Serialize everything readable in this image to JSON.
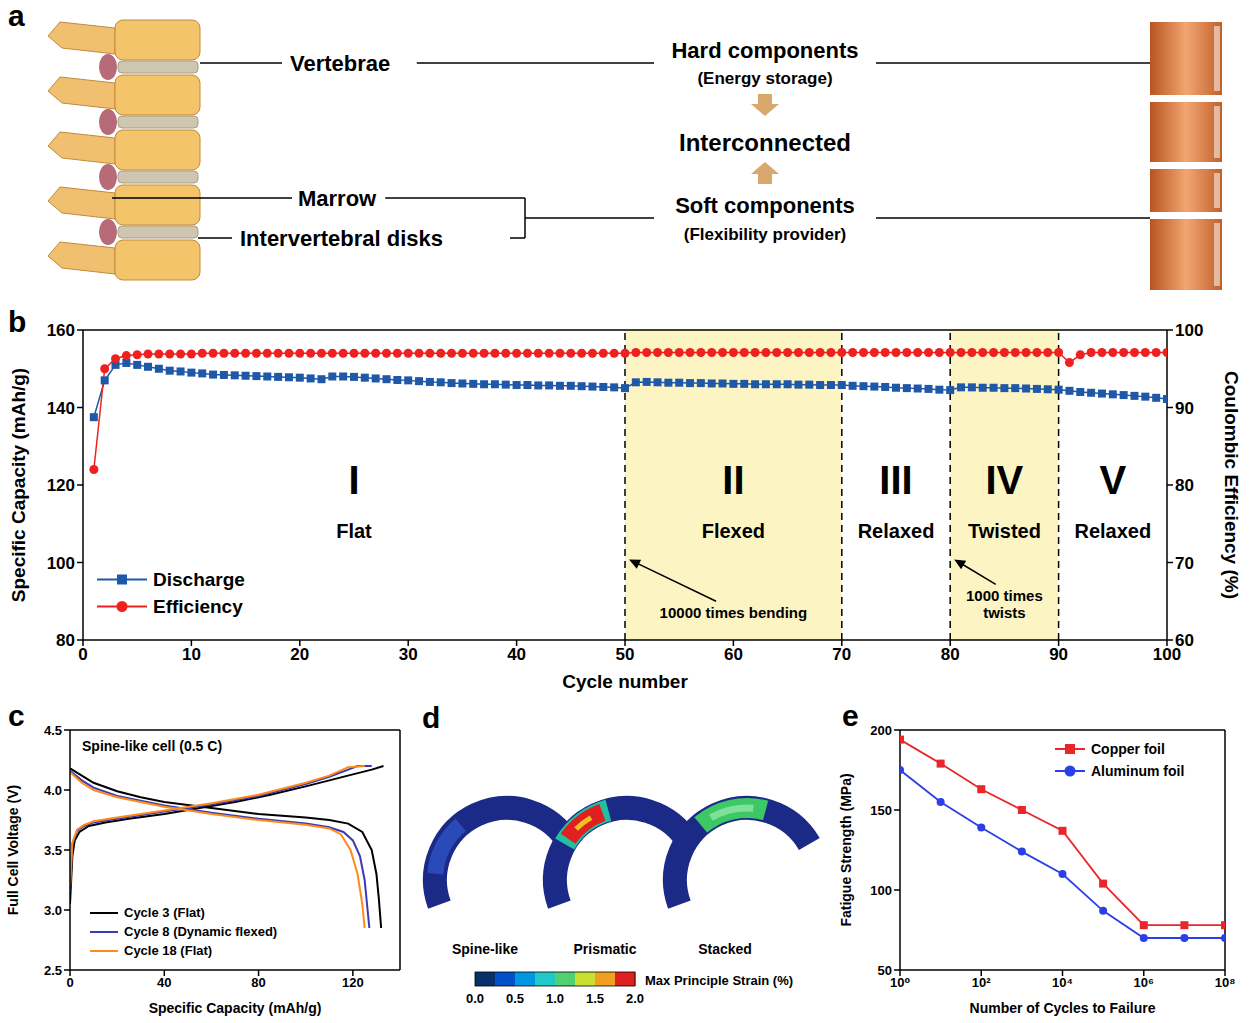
{
  "panel_labels": [
    "a",
    "b",
    "c",
    "d",
    "e"
  ],
  "diagram_a": {
    "left_labels": {
      "vertebrae": "Vertebrae",
      "marrow": "Marrow",
      "disks": "Intervertebral disks"
    },
    "center": {
      "hard": {
        "title": "Hard components",
        "subtitle": "(Energy storage)"
      },
      "link": "Interconnected",
      "soft": {
        "title": "Soft components",
        "subtitle": "(Flexibility provider)"
      }
    }
  },
  "chart_data": [
    {
      "type": "line",
      "xlabel": "Cycle number",
      "ylabel": "Specific Capacity (mAh/g)",
      "y2label": "Coulombic Efficiency (%)",
      "x": [
        1,
        2,
        3,
        4,
        5,
        6,
        7,
        8,
        9,
        10,
        11,
        12,
        13,
        14,
        15,
        16,
        17,
        18,
        19,
        20,
        21,
        22,
        23,
        24,
        25,
        26,
        27,
        28,
        29,
        30,
        31,
        32,
        33,
        34,
        35,
        36,
        37,
        38,
        39,
        40,
        41,
        42,
        43,
        44,
        45,
        46,
        47,
        48,
        49,
        50,
        51,
        52,
        53,
        54,
        55,
        56,
        57,
        58,
        59,
        60,
        61,
        62,
        63,
        64,
        65,
        66,
        67,
        68,
        69,
        70,
        71,
        72,
        73,
        74,
        75,
        76,
        77,
        78,
        79,
        80,
        81,
        82,
        83,
        84,
        85,
        86,
        87,
        88,
        89,
        90,
        91,
        92,
        93,
        94,
        95,
        96,
        97,
        98,
        99,
        100
      ],
      "xlim": [
        0,
        100
      ],
      "xticks": [
        0,
        10,
        20,
        30,
        40,
        50,
        60,
        70,
        80,
        90,
        100
      ],
      "ylim": [
        80,
        160
      ],
      "yticks": [
        80,
        100,
        120,
        140,
        160
      ],
      "y2lim": [
        60,
        100
      ],
      "y2ticks": [
        60,
        70,
        80,
        90,
        100
      ],
      "legend": "lower left",
      "series": [
        {
          "name": "Discharge",
          "color": "#2058a8",
          "marker": "square",
          "values": [
            137.5,
            147,
            151,
            151.5,
            151,
            150.5,
            150,
            149.5,
            149.3,
            149,
            148.8,
            148.5,
            148.4,
            148.3,
            148.2,
            148.1,
            148,
            147.9,
            147.8,
            147.7,
            147.5,
            147.3,
            148,
            148,
            147.9,
            147.7,
            147.5,
            147.3,
            147.1,
            147,
            146.8,
            146.6,
            146.5,
            146.3,
            146.2,
            146.1,
            146,
            146,
            145.9,
            145.8,
            145.8,
            145.7,
            145.7,
            145.6,
            145.6,
            145.5,
            145.4,
            145.3,
            145.2,
            145,
            146.5,
            146.6,
            146.5,
            146.4,
            146.4,
            146.3,
            146.3,
            146.2,
            146.2,
            146.1,
            146.1,
            146,
            146,
            146,
            146,
            145.9,
            145.9,
            145.8,
            145.8,
            145.8,
            145.6,
            145.5,
            145.4,
            145.3,
            145.1,
            145,
            144.9,
            144.8,
            144.6,
            144.5,
            145.2,
            145.2,
            145.1,
            145.1,
            145,
            145,
            144.9,
            144.8,
            144.7,
            144.6,
            144.3,
            144,
            143.8,
            143.6,
            143.4,
            143.2,
            143,
            142.8,
            142.5,
            142.2
          ]
        },
        {
          "name": "Efficiency",
          "color": "#ee2020",
          "marker": "circle",
          "axis": "y2",
          "values": [
            82,
            95,
            96.3,
            96.7,
            96.8,
            96.9,
            96.9,
            96.9,
            96.9,
            96.9,
            97,
            97,
            97,
            97,
            97,
            97,
            97,
            97,
            97,
            97,
            97,
            97,
            97,
            97,
            97,
            97,
            97,
            97,
            97,
            97,
            97,
            97,
            97,
            97,
            97,
            97,
            97,
            97,
            97,
            97,
            97,
            97,
            97,
            97,
            97,
            97,
            97,
            97,
            97,
            97,
            97.1,
            97.1,
            97.1,
            97.1,
            97.1,
            97.1,
            97.1,
            97.1,
            97.1,
            97.1,
            97.1,
            97.1,
            97.1,
            97.1,
            97.1,
            97.1,
            97.1,
            97.1,
            97.1,
            97.1,
            97.1,
            97.1,
            97.1,
            97.1,
            97.1,
            97.1,
            97.1,
            97.1,
            97.1,
            97.1,
            97.1,
            97.1,
            97.1,
            97.1,
            97.1,
            97.1,
            97.1,
            97.1,
            97.1,
            97.1,
            95.8,
            96.8,
            97.1,
            97.1,
            97.1,
            97.1,
            97.1,
            97.1,
            97.1,
            97.1
          ]
        }
      ],
      "regions": [
        {
          "from": 0,
          "to": 50,
          "label": "I",
          "name": "Flat"
        },
        {
          "from": 50,
          "to": 70,
          "label": "II",
          "name": "Flexed",
          "color": "#fbf1a9",
          "note": "10000 times bending"
        },
        {
          "from": 70,
          "to": 80,
          "label": "III",
          "name": "Relaxed"
        },
        {
          "from": 80,
          "to": 90,
          "label": "IV",
          "name": "Twisted",
          "color": "#fbf1a9",
          "note": "1000 times twists"
        },
        {
          "from": 90,
          "to": 100,
          "label": "V",
          "name": "Relaxed"
        }
      ]
    },
    {
      "type": "line",
      "title": "Spine-like cell (0.5 C)",
      "xlabel": "Specific Capacity (mAh/g)",
      "ylabel": "Full Cell Voltage (V)",
      "xlim": [
        0,
        140
      ],
      "xticks": [
        0,
        40,
        80,
        120
      ],
      "ylim": [
        2.5,
        4.5
      ],
      "yticks": [
        2.5,
        {
          "value": 3,
          "label": "3.0"
        },
        3.5,
        {
          "value": 4,
          "label": "4.0"
        },
        4.5
      ],
      "legend": "lower left",
      "series": [
        {
          "name": "Cycle 3 (Flat)",
          "color": "#000000",
          "curves": [
            {
              "x": [
                0,
                1,
                2,
                4,
                8,
                15,
                25,
                40,
                55,
                70,
                85,
                100,
                110,
                120,
                128,
                133
              ],
              "values": [
                3.05,
                3.45,
                3.58,
                3.65,
                3.7,
                3.73,
                3.76,
                3.8,
                3.85,
                3.9,
                3.96,
                4.03,
                4.08,
                4.13,
                4.17,
                4.2
              ]
            },
            {
              "x": [
                0,
                5,
                10,
                20,
                30,
                40,
                60,
                80,
                100,
                110,
                118,
                124,
                128,
                130,
                131,
                132
              ],
              "values": [
                4.18,
                4.12,
                4.06,
                3.99,
                3.94,
                3.9,
                3.85,
                3.8,
                3.77,
                3.75,
                3.72,
                3.65,
                3.5,
                3.3,
                3.1,
                2.85
              ]
            }
          ]
        },
        {
          "name": "Cycle 8 (Dynamic flexed)",
          "color": "#3a3ab8",
          "curves": [
            {
              "x": [
                0,
                1,
                3,
                6,
                10,
                20,
                40,
                60,
                80,
                100,
                110,
                118,
                122,
                128
              ],
              "values": [
                3.15,
                3.55,
                3.66,
                3.7,
                3.73,
                3.76,
                3.82,
                3.88,
                3.95,
                4.05,
                4.11,
                4.17,
                4.2,
                4.2
              ]
            },
            {
              "x": [
                0,
                5,
                10,
                20,
                40,
                60,
                80,
                100,
                110,
                116,
                120,
                123,
                125,
                126,
                127
              ],
              "values": [
                4.16,
                4.08,
                4.02,
                3.95,
                3.87,
                3.81,
                3.76,
                3.72,
                3.69,
                3.65,
                3.58,
                3.45,
                3.25,
                3.05,
                2.85
              ]
            }
          ]
        },
        {
          "name": "Cycle 18 (Flat)",
          "color": "#ff8a1c",
          "curves": [
            {
              "x": [
                0,
                1,
                3,
                6,
                10,
                20,
                40,
                60,
                80,
                100,
                110,
                118,
                125
              ],
              "values": [
                3.2,
                3.56,
                3.67,
                3.71,
                3.74,
                3.77,
                3.83,
                3.89,
                3.96,
                4.06,
                4.12,
                4.19,
                4.2
              ]
            },
            {
              "x": [
                0,
                5,
                10,
                20,
                40,
                60,
                80,
                100,
                110,
                115,
                119,
                122,
                124,
                125
              ],
              "values": [
                4.15,
                4.06,
                4,
                3.94,
                3.86,
                3.8,
                3.75,
                3.71,
                3.68,
                3.63,
                3.5,
                3.3,
                3.05,
                2.85
              ]
            }
          ]
        }
      ]
    },
    {
      "type": "line",
      "log": "x",
      "xlabel": "Number of Cycles to Failure",
      "ylabel": "Fatigue Strength (MPa)",
      "x": [
        1,
        10,
        100,
        1000,
        10000,
        100000,
        1000000,
        10000000,
        100000000
      ],
      "xlim": [
        1,
        100000000
      ],
      "xticks": [
        {
          "value": 1,
          "label": "10⁰"
        },
        {
          "value": 100,
          "label": "10²"
        },
        {
          "value": 10000,
          "label": "10⁴"
        },
        {
          "value": 1000000,
          "label": "10⁶"
        },
        {
          "value": 100000000,
          "label": "10⁸"
        }
      ],
      "ylim": [
        50,
        200
      ],
      "yticks": [
        50,
        100,
        150,
        200
      ],
      "legend": "upper right",
      "series": [
        {
          "name": "Copper foil",
          "color": "#e8262b",
          "marker": "square",
          "values": [
            194,
            179,
            163,
            150,
            137,
            104,
            78,
            78,
            78
          ]
        },
        {
          "name": "Aluminum foil",
          "color": "#2b3fe8",
          "marker": "circle",
          "values": [
            175,
            155,
            139,
            124,
            110,
            87,
            70,
            70,
            70
          ]
        }
      ]
    }
  ],
  "diagram_d": {
    "labels": [
      "Spine-like",
      "Prismatic",
      "Stacked"
    ],
    "colorbar": {
      "label": "Max Principle Strain (%)",
      "range": [
        0,
        2
      ],
      "ticks": [
        {
          "value": 0,
          "label": "0.0"
        },
        {
          "value": 0.5,
          "label": "0.5"
        },
        {
          "value": 1,
          "label": "1.0"
        },
        {
          "value": 1.5,
          "label": "1.5"
        },
        {
          "value": 2,
          "label": "2.0"
        }
      ]
    }
  }
}
